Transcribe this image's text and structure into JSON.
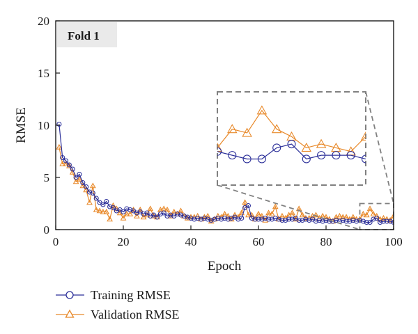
{
  "chart_data": {
    "type": "line",
    "title": "",
    "panel_label": "Fold 1",
    "xlabel": "Epoch",
    "ylabel": "RMSE",
    "xlim": [
      0,
      100
    ],
    "ylim": [
      0,
      20
    ],
    "xticks": [
      0,
      20,
      40,
      60,
      80,
      100
    ],
    "yticks": [
      0,
      5,
      10,
      15,
      20
    ],
    "grid": false,
    "legend_position": "bottom-left",
    "x": [
      1,
      2,
      3,
      4,
      5,
      6,
      7,
      8,
      9,
      10,
      11,
      12,
      13,
      14,
      15,
      16,
      17,
      18,
      19,
      20,
      21,
      22,
      23,
      24,
      25,
      26,
      27,
      28,
      29,
      30,
      31,
      32,
      33,
      34,
      35,
      36,
      37,
      38,
      39,
      40,
      41,
      42,
      43,
      44,
      45,
      46,
      47,
      48,
      49,
      50,
      51,
      52,
      53,
      54,
      55,
      56,
      57,
      58,
      59,
      60,
      61,
      62,
      63,
      64,
      65,
      66,
      67,
      68,
      69,
      70,
      71,
      72,
      73,
      74,
      75,
      76,
      77,
      78,
      79,
      80,
      81,
      82,
      83,
      84,
      85,
      86,
      87,
      88,
      89,
      90,
      91,
      92,
      93,
      94,
      95,
      96,
      97,
      98,
      99,
      100
    ],
    "series": [
      {
        "name": "Training RMSE",
        "color": "#2b2f99",
        "marker": "circle",
        "values": [
          10.1,
          6.9,
          6.6,
          6.2,
          5.8,
          5.0,
          5.3,
          4.5,
          4.1,
          3.6,
          3.5,
          3.0,
          2.6,
          2.4,
          2.7,
          2.2,
          2.1,
          1.8,
          1.9,
          1.7,
          2.0,
          1.9,
          1.8,
          1.6,
          1.7,
          1.5,
          1.6,
          1.3,
          1.4,
          1.2,
          1.5,
          1.6,
          1.3,
          1.4,
          1.3,
          1.5,
          1.4,
          1.3,
          1.2,
          1.1,
          1.0,
          1.1,
          1.0,
          1.1,
          1.0,
          0.9,
          1.0,
          1.1,
          1.0,
          1.1,
          1.0,
          1.1,
          1.2,
          1.0,
          1.1,
          2.1,
          2.3,
          1.1,
          1.0,
          1.0,
          1.0,
          1.1,
          1.0,
          1.0,
          1.1,
          1.0,
          0.9,
          0.9,
          1.0,
          1.0,
          1.1,
          0.9,
          0.9,
          1.0,
          0.9,
          1.0,
          0.8,
          0.9,
          0.8,
          0.9,
          0.8,
          0.8,
          0.9,
          0.8,
          0.9,
          0.8,
          0.8,
          0.9,
          0.8,
          0.9,
          0.8,
          0.7,
          0.7,
          1.0,
          1.1,
          0.7,
          0.8,
          0.8,
          0.8,
          0.7
        ]
      },
      {
        "name": "Validation RMSE",
        "color": "#e8892a",
        "marker": "triangle",
        "values": [
          7.9,
          6.3,
          6.3,
          6.1,
          5.5,
          4.6,
          4.8,
          4.2,
          3.8,
          2.6,
          4.2,
          1.9,
          1.8,
          1.7,
          1.7,
          1.0,
          2.3,
          2.0,
          1.6,
          1.1,
          1.5,
          1.5,
          1.9,
          1.3,
          1.9,
          1.2,
          1.4,
          2.0,
          1.3,
          1.2,
          1.9,
          2.0,
          1.9,
          1.3,
          1.7,
          1.5,
          1.8,
          1.3,
          1.1,
          1.2,
          1.2,
          1.3,
          1.0,
          1.2,
          1.3,
          0.8,
          1.0,
          1.3,
          1.2,
          1.5,
          1.3,
          1.0,
          1.4,
          1.2,
          1.6,
          2.6,
          1.4,
          1.4,
          1.0,
          1.5,
          1.3,
          0.9,
          1.6,
          1.5,
          2.2,
          1.0,
          1.3,
          1.1,
          1.4,
          1.6,
          1.0,
          2.0,
          1.4,
          1.1,
          1.1,
          1.3,
          1.4,
          1.1,
          1.3,
          1.2,
          1.0,
          0.8,
          1.2,
          1.3,
          1.2,
          1.2,
          1.0,
          1.2,
          1.0,
          1.0,
          1.5,
          1.4,
          2.0,
          1.5,
          1.3,
          1.0,
          1.1,
          1.0,
          0.9,
          1.3
        ]
      }
    ],
    "inset": {
      "x_range": [
        90,
        100
      ],
      "y_range": [
        0,
        2.5
      ]
    }
  }
}
